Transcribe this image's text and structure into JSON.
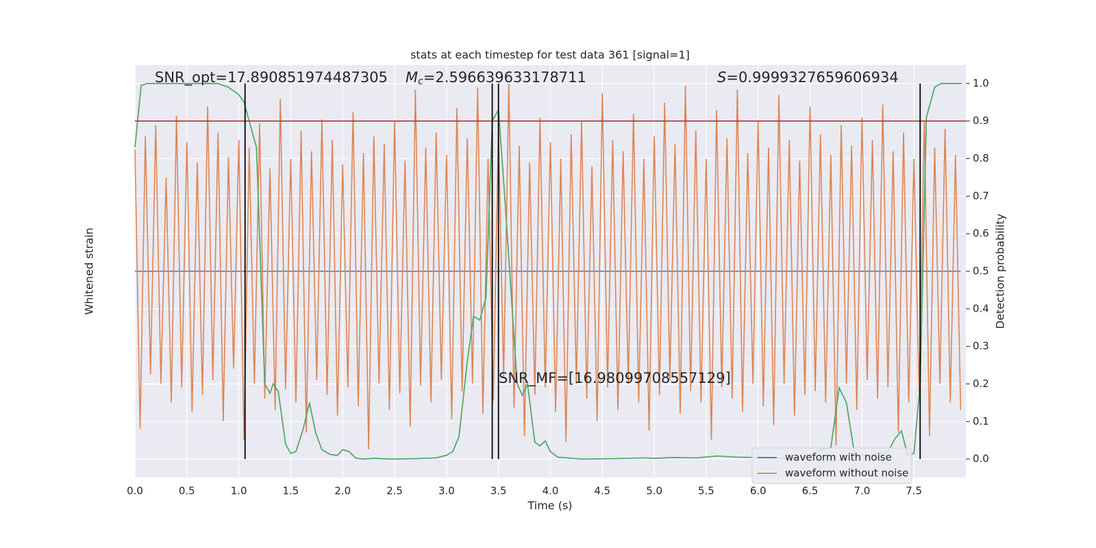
{
  "chart_data": {
    "type": "line",
    "title": "stats at each timestep for test data 361 [signal=1]",
    "xlabel": "Time (s)",
    "ylabel": "Whitened strain",
    "y2label": "Detection probability",
    "xlim": [
      0,
      8.0
    ],
    "ylim": [
      -1.1,
      1.1
    ],
    "y2lim": [
      -0.049,
      1.049
    ],
    "xticks": [
      {
        "value": 0,
        "label": "0.0"
      },
      {
        "value": 0.5,
        "label": "0.5"
      },
      {
        "value": 1,
        "label": "1.0"
      },
      {
        "value": 1.5,
        "label": "1.5"
      },
      {
        "value": 2,
        "label": "2.0"
      },
      {
        "value": 2.5,
        "label": "2.5"
      },
      {
        "value": 3,
        "label": "3.0"
      },
      {
        "value": 3.5,
        "label": "3.5"
      },
      {
        "value": 4,
        "label": "4.0"
      },
      {
        "value": 4.5,
        "label": "4.5"
      },
      {
        "value": 5,
        "label": "5.0"
      },
      {
        "value": 5.5,
        "label": "5.5"
      },
      {
        "value": 6,
        "label": "6.0"
      },
      {
        "value": 6.5,
        "label": "6.5"
      },
      {
        "value": 7,
        "label": "7.0"
      },
      {
        "value": 7.5,
        "label": "7.5"
      }
    ],
    "y2ticks": [
      {
        "value": 0,
        "label": "0.0"
      },
      0.1,
      0.2,
      0.3,
      0.4,
      0.5,
      0.6,
      0.7,
      0.8,
      0.9,
      {
        "value": 1,
        "label": "1.0"
      }
    ],
    "grid": true,
    "legend": "lower right",
    "x": [
      0,
      0.05,
      0.1,
      0.15,
      0.2,
      0.25,
      0.3,
      0.35,
      0.4,
      0.45,
      0.5,
      0.55,
      0.6,
      0.65,
      0.7,
      0.75,
      0.8,
      0.85,
      0.9,
      0.95,
      1,
      1.05,
      1.1,
      1.15,
      1.2,
      1.25,
      1.3,
      1.35,
      1.4,
      1.45,
      1.5,
      1.55,
      1.6,
      1.65,
      1.7,
      1.75,
      1.8,
      1.85,
      1.9,
      1.95,
      2,
      2.05,
      2.1,
      2.15,
      2.2,
      2.25,
      2.3,
      2.35,
      2.4,
      2.45,
      2.5,
      2.55,
      2.6,
      2.65,
      2.7,
      2.75,
      2.8,
      2.85,
      2.9,
      2.95,
      3,
      3.05,
      3.1,
      3.15,
      3.2,
      3.25,
      3.3,
      3.35,
      3.4,
      3.45,
      3.5,
      3.55,
      3.6,
      3.65,
      3.7,
      3.75,
      3.8,
      3.85,
      3.9,
      3.95,
      4,
      4.05,
      4.1,
      4.15,
      4.2,
      4.25,
      4.3,
      4.35,
      4.4,
      4.45,
      4.5,
      4.55,
      4.6,
      4.65,
      4.7,
      4.75,
      4.8,
      4.85,
      4.9,
      4.95,
      5,
      5.05,
      5.1,
      5.15,
      5.2,
      5.25,
      5.3,
      5.35,
      5.4,
      5.45,
      5.5,
      5.55,
      5.6,
      5.65,
      5.7,
      5.75,
      5.8,
      5.85,
      5.9,
      5.95,
      6,
      6.05,
      6.1,
      6.15,
      6.2,
      6.25,
      6.3,
      6.35,
      6.4,
      6.45,
      6.5,
      6.55,
      6.6,
      6.65,
      6.7,
      6.75,
      6.8,
      6.85,
      6.9,
      6.95,
      7,
      7.05,
      7.1,
      7.15,
      7.2,
      7.25,
      7.3,
      7.35,
      7.4,
      7.45,
      7.5,
      7.55,
      7.6,
      7.65,
      7.7,
      7.75,
      7.8,
      7.85,
      7.9,
      7.95
    ],
    "series": [
      {
        "name": "waveform with noise",
        "color": "#4c72b0",
        "values": [
          0,
          0,
          0,
          0,
          0,
          0,
          0,
          0,
          0,
          0,
          0,
          0,
          0,
          0,
          0,
          0,
          0,
          0,
          0,
          0,
          0,
          0,
          0,
          0,
          0,
          0,
          0,
          0,
          0,
          0,
          0,
          0,
          0,
          0,
          0,
          0,
          0,
          0,
          0,
          0,
          0,
          0,
          0,
          0,
          0,
          0,
          0,
          0,
          0,
          0,
          0,
          0,
          0,
          0,
          0,
          0,
          0,
          0,
          0,
          0,
          0,
          0,
          0,
          0,
          0,
          0,
          0,
          0,
          0,
          0,
          0,
          0,
          0,
          0,
          0,
          0,
          0,
          0,
          0,
          0,
          0,
          0,
          0,
          0,
          0,
          0,
          0,
          0,
          0,
          0,
          0,
          0,
          0,
          0,
          0,
          0,
          0,
          0,
          0,
          0,
          0,
          0,
          0,
          0,
          0,
          0,
          0,
          0,
          0,
          0,
          0,
          0,
          0,
          0,
          0,
          0,
          0,
          0,
          0,
          0,
          0,
          0,
          0,
          0,
          0,
          0,
          0,
          0,
          0,
          0,
          0,
          0,
          0,
          0,
          0,
          0,
          0,
          0,
          0,
          0,
          0,
          0,
          0,
          0,
          0,
          0,
          0,
          0,
          0,
          0,
          0,
          0,
          0,
          0,
          0,
          0,
          0,
          0,
          0,
          0
        ]
      },
      {
        "name": "waveform without noise",
        "color": "#dd8452",
        "values": [
          0.65,
          -0.84,
          0.72,
          -0.55,
          0.78,
          -0.6,
          0.5,
          -0.7,
          0.83,
          -0.62,
          0.69,
          -0.75,
          0.58,
          -0.66,
          0.88,
          -0.58,
          0.74,
          -0.8,
          0.61,
          -0.52,
          0.7,
          -0.9,
          0.66,
          -0.6,
          0.79,
          -0.68,
          0.55,
          -0.74,
          0.92,
          -0.63,
          0.6,
          -0.7,
          0.75,
          -0.86,
          0.64,
          -0.58,
          0.81,
          -0.66,
          0.7,
          -0.77,
          0.57,
          -0.62,
          0.85,
          -0.72,
          0.63,
          -0.95,
          0.72,
          -0.6,
          0.68,
          -0.74,
          0.8,
          -0.65,
          0.59,
          -0.83,
          0.97,
          -0.61,
          0.66,
          -0.7,
          0.74,
          -0.58,
          0.62,
          -0.79,
          0.87,
          -0.64,
          0.71,
          -0.6,
          0.98,
          -0.76,
          0.6,
          -0.69,
          0.76,
          -0.57,
          1.0,
          -0.73,
          0.67,
          -0.88,
          0.58,
          -0.66,
          0.82,
          -0.62,
          0.69,
          -0.75,
          0.6,
          -0.91,
          0.73,
          -0.6,
          0.8,
          -0.68,
          0.56,
          -0.8,
          0.95,
          -0.62,
          0.7,
          -0.74,
          0.64,
          -0.6,
          0.84,
          -0.7,
          0.6,
          -0.85,
          0.72,
          -0.66,
          0.9,
          -0.58,
          0.68,
          -0.76,
          0.99,
          -0.64,
          0.75,
          -0.7,
          0.6,
          -0.9,
          0.86,
          -0.62,
          0.71,
          -0.68,
          0.97,
          -0.75,
          0.63,
          -0.6,
          0.8,
          -0.72,
          0.66,
          -0.82,
          0.94,
          -0.6,
          0.7,
          -0.77,
          0.59,
          -0.66,
          0.88,
          -0.64,
          0.73,
          -0.7,
          0.62,
          -0.93,
          0.78,
          -0.6,
          0.67,
          -0.74,
          0.82,
          -0.58,
          0.7,
          -0.68,
          0.89,
          -0.62,
          0.64,
          -0.86,
          0.74,
          -0.7,
          0.6,
          -0.65,
          0.8,
          -0.88,
          0.66,
          -0.6,
          0.76,
          -0.7,
          0.62,
          -0.74
        ]
      }
    ],
    "detection": {
      "color": "#55a868",
      "x": [
        0,
        0.06,
        0.12,
        0.3,
        0.5,
        0.8,
        0.9,
        1.0,
        1.05,
        1.1,
        1.17,
        1.25,
        1.3,
        1.33,
        1.38,
        1.45,
        1.5,
        1.55,
        1.62,
        1.68,
        1.74,
        1.8,
        1.88,
        1.95,
        2.0,
        2.06,
        2.13,
        2.2,
        2.3,
        2.45,
        2.7,
        2.9,
        3.0,
        3.06,
        3.12,
        3.2,
        3.26,
        3.32,
        3.38,
        3.44,
        3.5,
        3.56,
        3.62,
        3.68,
        3.73,
        3.78,
        3.85,
        3.9,
        3.95,
        4.0,
        4.07,
        4.3,
        4.6,
        4.9,
        5.0,
        5.2,
        5.4,
        5.6,
        5.8,
        6.0,
        6.2,
        6.4,
        6.5,
        6.6,
        6.7,
        6.78,
        6.85,
        6.93,
        7.1,
        7.25,
        7.32,
        7.38,
        7.44,
        7.5,
        7.56,
        7.62,
        7.7,
        7.76,
        7.96
      ],
      "values": [
        0.83,
        0.995,
        1.0,
        1.0,
        1.0,
        1.0,
        0.99,
        0.97,
        0.95,
        0.9,
        0.83,
        0.2,
        0.175,
        0.2,
        0.18,
        0.04,
        0.015,
        0.02,
        0.08,
        0.15,
        0.07,
        0.025,
        0.012,
        0.01,
        0.025,
        0.02,
        0.002,
        0.0,
        0.002,
        0.0,
        0.001,
        0.003,
        0.01,
        0.02,
        0.06,
        0.26,
        0.38,
        0.37,
        0.43,
        0.9,
        0.93,
        0.7,
        0.45,
        0.2,
        0.17,
        0.2,
        0.045,
        0.035,
        0.048,
        0.02,
        0.005,
        0.0,
        0.001,
        0.003,
        0.002,
        0.004,
        0.003,
        0.008,
        0.005,
        0.004,
        0.002,
        0.003,
        0.01,
        0.025,
        0.03,
        0.19,
        0.15,
        0.01,
        0.01,
        0.02,
        0.055,
        0.075,
        0.01,
        0.015,
        0.2,
        0.91,
        0.99,
        1.0,
        1.0
      ]
    },
    "vlines": {
      "color": "#000000",
      "x": [
        1.06,
        3.44,
        3.5,
        7.56
      ]
    },
    "threshold": {
      "color": "#b03030",
      "value": 0.9
    },
    "annotations": [
      {
        "text": "SNR_opt=17.890851974487305"
      },
      {
        "symbol": "M",
        "subscript": "c",
        "text": "=2.596639633178711"
      },
      {
        "symbol": "S",
        "text": "=0.9999327659606934"
      },
      {
        "text": "SNR_MF=[16.98099708557129]"
      }
    ]
  }
}
